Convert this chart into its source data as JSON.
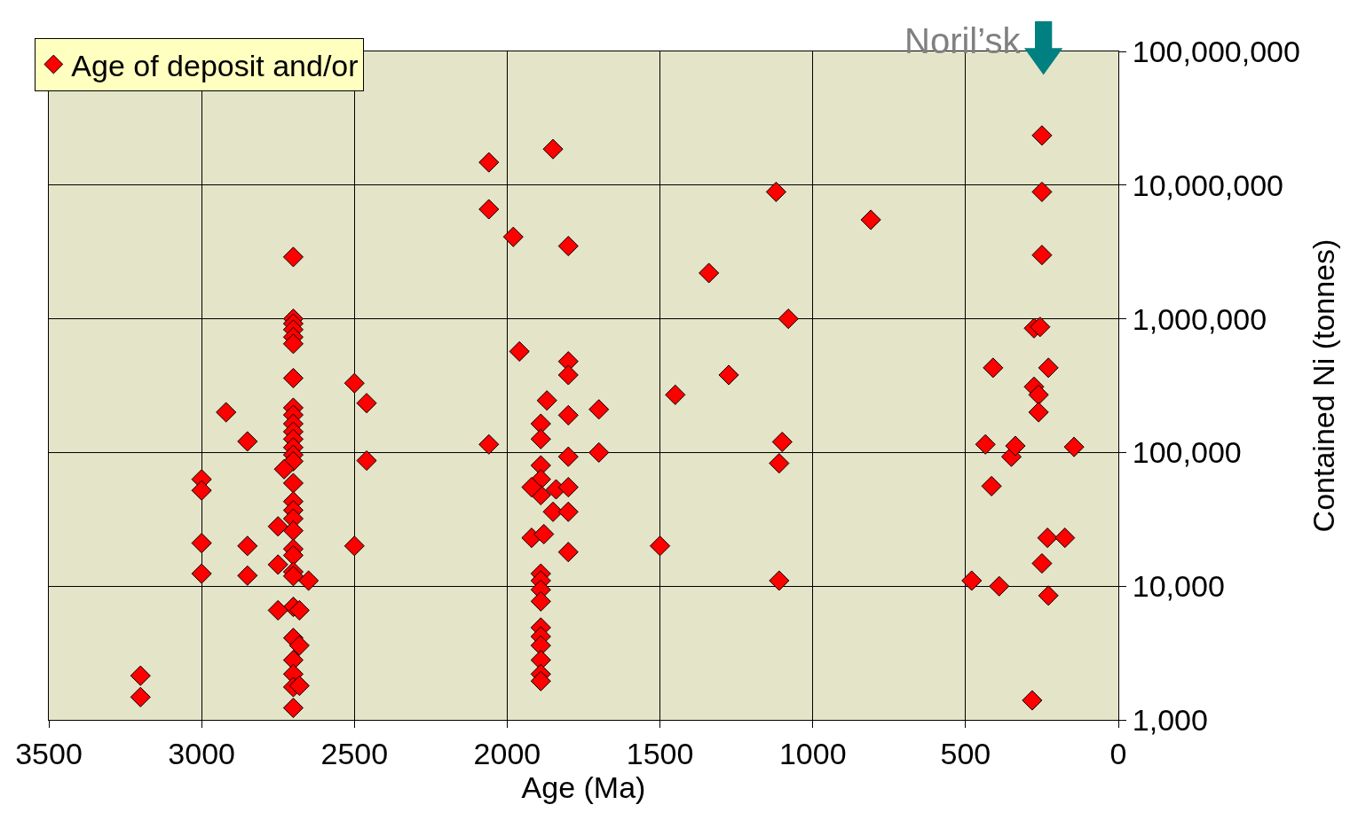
{
  "chart_data": {
    "type": "scatter",
    "xlabel": "Age (Ma)",
    "ylabel": "Contained Ni (tonnes)",
    "xlim": [
      3500,
      0
    ],
    "xticks": [
      3500,
      3000,
      2500,
      2000,
      1500,
      1000,
      500,
      0
    ],
    "ylim": [
      1000,
      100000000
    ],
    "log": "y",
    "yticks": [
      {
        "value": 1000,
        "label": "1,000"
      },
      {
        "value": 10000,
        "label": "10,000"
      },
      {
        "value": 100000,
        "label": "100,000"
      },
      {
        "value": 1000000,
        "label": "1,000,000"
      },
      {
        "value": 10000000,
        "label": "10,000,000"
      },
      {
        "value": 100000000,
        "label": "100,000,000"
      }
    ],
    "grid": true,
    "legend": "top left",
    "marker": "diamond",
    "annotations": [
      "Noril’sk"
    ],
    "series": [
      {
        "name": "Age of deposit and/or",
        "color": "#ff0000",
        "x": [
          3200,
          3200,
          3000,
          3000,
          3000,
          3000,
          2920,
          2850,
          2850,
          2850,
          2700,
          2700,
          2700,
          2700,
          2700,
          2700,
          2700,
          2700,
          2700,
          2700,
          2700,
          2700,
          2700,
          2700,
          2700,
          2700,
          2700,
          2700,
          2700,
          2700,
          2700,
          2700,
          2700,
          2700,
          2700,
          2700,
          2700,
          2700,
          2700,
          2700,
          2730,
          2750,
          2750,
          2750,
          2680,
          2680,
          2680,
          2650,
          2500,
          2500,
          2460,
          2460,
          2060,
          2060,
          2060,
          1980,
          1960,
          1850,
          1800,
          1870,
          1890,
          1890,
          1890,
          1890,
          1890,
          1920,
          1920,
          1880,
          1840,
          1850,
          1890,
          1890,
          1890,
          1890,
          1890,
          1890,
          1890,
          1890,
          1890,
          1890,
          1800,
          1800,
          1800,
          1800,
          1800,
          1800,
          1800,
          1700,
          1700,
          1500,
          1450,
          1340,
          1275,
          1120,
          1080,
          1100,
          1110,
          1110,
          810,
          480,
          435,
          415,
          410,
          390,
          350,
          337,
          282,
          276,
          256,
          276,
          261,
          261,
          250,
          250,
          250,
          250,
          232,
          229,
          229,
          175,
          145
        ],
        "values": [
          2140,
          1480,
          63000,
          52000,
          21000,
          12400,
          200000,
          121000,
          20000,
          12000,
          2900000,
          1000000,
          920000,
          830000,
          730000,
          650000,
          360000,
          216000,
          191000,
          164000,
          143000,
          126000,
          109000,
          96000,
          86000,
          59000,
          43000,
          37000,
          32000,
          26000,
          19000,
          17000,
          12800,
          11900,
          7000,
          4100,
          2800,
          2200,
          1760,
          1230,
          75000,
          28000,
          14500,
          6600,
          6600,
          3600,
          1800,
          11000,
          330000,
          20000,
          234000,
          87000,
          14800000,
          6600000,
          115000,
          4100000,
          570000,
          18600000,
          3500000,
          245000,
          164000,
          126000,
          80000,
          63000,
          48000,
          55000,
          23000,
          24500,
          53000,
          36000,
          12400,
          11000,
          9400,
          7700,
          4900,
          4200,
          3600,
          2800,
          2200,
          1950,
          480000,
          380000,
          190000,
          93000,
          55000,
          36000,
          18000,
          210000,
          100000,
          20000,
          270000,
          2200000,
          380000,
          8900000,
          1000000,
          120000,
          83000,
          11000,
          5500000,
          11000,
          115000,
          56000,
          430000,
          10000,
          93000,
          112000,
          1400,
          850000,
          870000,
          310000,
          270000,
          200000,
          23500000,
          8900000,
          3000000,
          14800,
          23000,
          430000,
          8500,
          23000,
          110000
        ]
      }
    ]
  }
}
